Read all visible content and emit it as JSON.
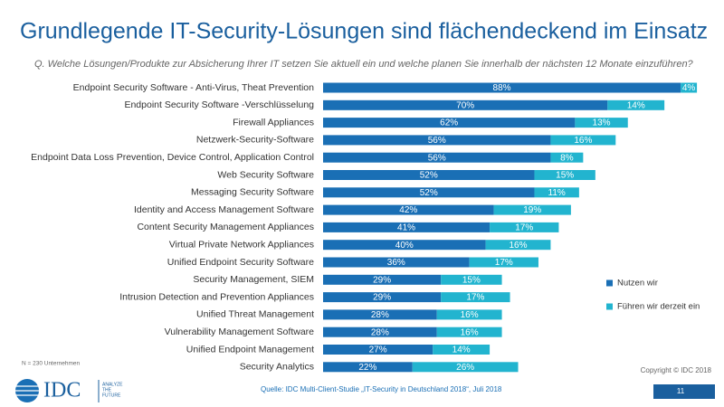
{
  "chart_data": {
    "type": "stacked-bar-horizontal",
    "title": "Grundlegende IT-Security-Lösungen sind flächendeckend im Einsatz",
    "subtitle": "Q. Welche Lösungen/Produkte zur Absicherung Ihrer IT setzen Sie aktuell ein und welche planen Sie innerhalb der nächsten 12 Monate einzuführen?",
    "categories": [
      "Endpoint Security Software - Anti-Virus, Theat Prevention",
      "Endpoint Security Software -Verschlüsselung",
      "Firewall Appliances",
      "Netzwerk-Security-Software",
      "Endpoint  Data Loss Prevention, Device Control, Application Control",
      "Web Security Software",
      "Messaging Security Software",
      "Identity and Access Management Software",
      "Content Security Management Appliances",
      "Virtual Private Network Appliances",
      "Unified Endpoint Security Software",
      "Security Management, SIEM",
      "Intrusion Detection and Prevention Appliances",
      "Unified Threat Management",
      "Vulnerability Management Software",
      "Unified Endpoint Management",
      "Security Analytics"
    ],
    "series": [
      {
        "name": "Nutzen wir",
        "color": "#1a6fb5",
        "values": [
          88,
          70,
          62,
          56,
          56,
          52,
          52,
          42,
          41,
          40,
          36,
          29,
          29,
          28,
          28,
          27,
          22
        ],
        "value_labels": [
          "88%",
          "70%",
          "62%",
          "56%",
          "56%",
          "52%",
          "52%",
          "42%",
          "41%",
          "40%",
          "36%",
          "29%",
          "29%",
          "28%",
          "28%",
          "27%",
          "22%"
        ]
      },
      {
        "name": "Führen wir derzeit ein",
        "color": "#22b4cf",
        "values": [
          4,
          14,
          13,
          16,
          8,
          15,
          11,
          19,
          17,
          16,
          17,
          15,
          17,
          16,
          16,
          14,
          26
        ],
        "value_labels": [
          "4%",
          "14%",
          "13%",
          "16%",
          "8%",
          "15%",
          "11%",
          "19%",
          "17%",
          "16%",
          "17%",
          "15%",
          "17%",
          "16%",
          "16%",
          "14%",
          "26%"
        ]
      }
    ],
    "note": "N = 230 Unternehmen",
    "copyright": "Copyright © IDC 2018",
    "source": "Quelle: IDC Multi-Client-Studie „IT-Security in Deutschland 2018“, Juli 2018",
    "page_number": "11",
    "logo": {
      "name": "IDC",
      "tagline": [
        "ANALYZE",
        "THE",
        "FUTURE"
      ]
    }
  }
}
